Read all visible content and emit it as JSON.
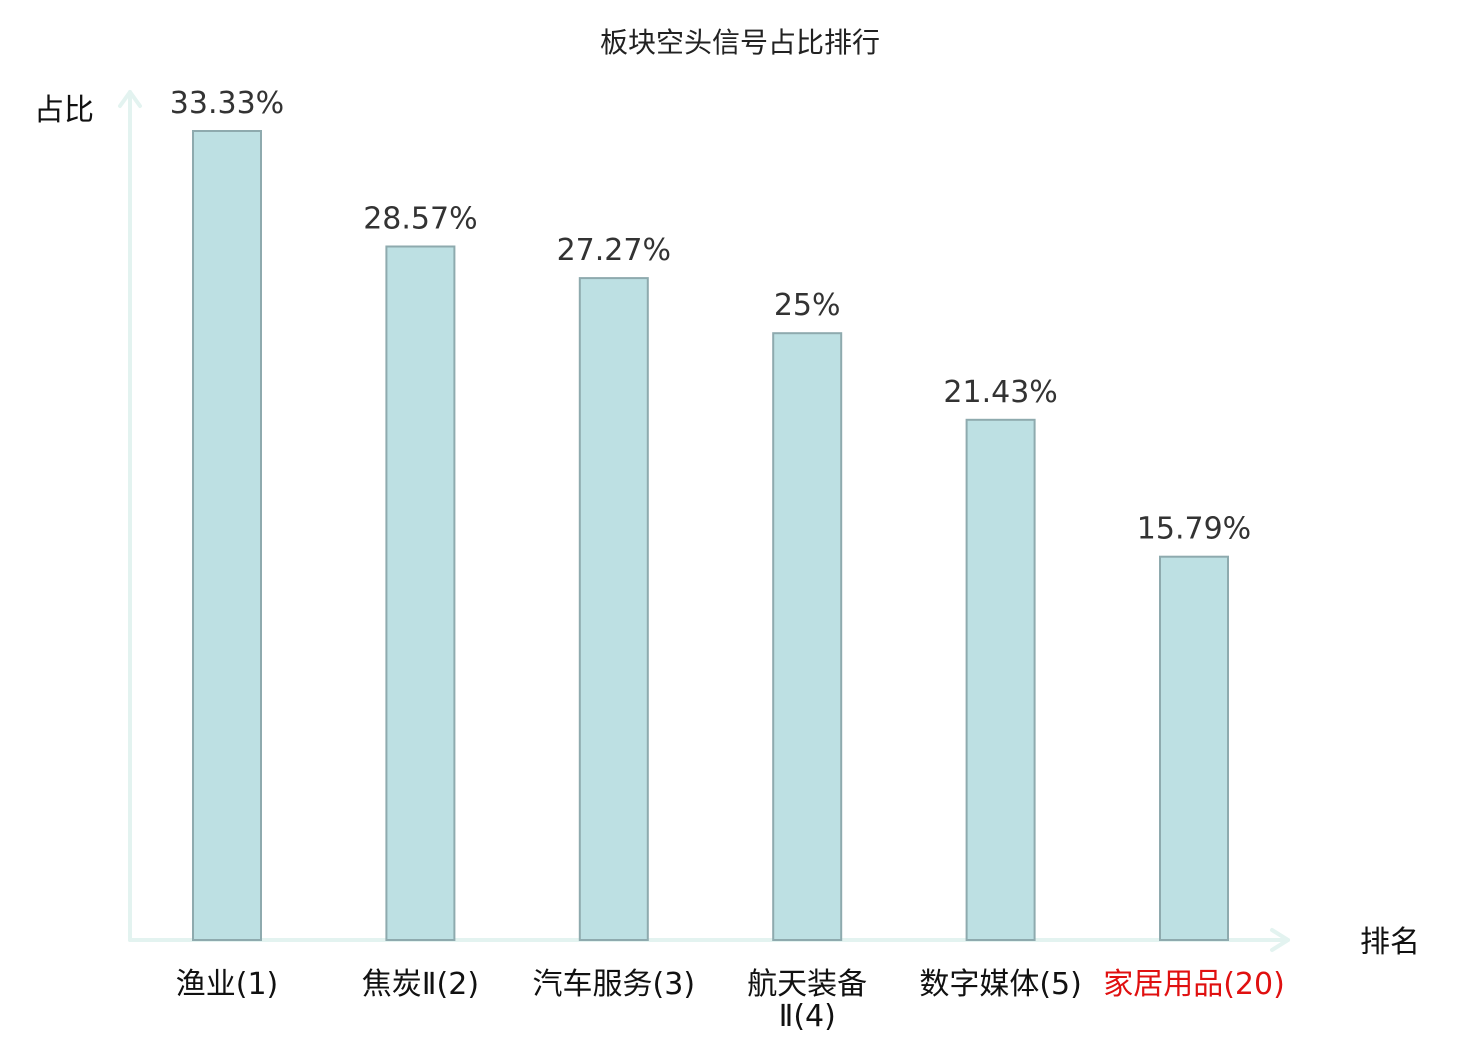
{
  "chart_data": {
    "type": "bar",
    "title": "板块空头信号占比排行",
    "ylabel": "占比",
    "xlabel": "排名",
    "categories": [
      {
        "label": "渔业(1)",
        "lines": [
          "渔业(1)"
        ],
        "highlight": false
      },
      {
        "label": "焦炭Ⅱ(2)",
        "lines": [
          "焦炭Ⅱ(2)"
        ],
        "highlight": false
      },
      {
        "label": "汽车服务(3)",
        "lines": [
          "汽车服务(3)"
        ],
        "highlight": false
      },
      {
        "label": "航天装备Ⅱ(4)",
        "lines": [
          "航天装备",
          "Ⅱ(4)"
        ],
        "highlight": false
      },
      {
        "label": "数字媒体(5)",
        "lines": [
          "数字媒体(5)"
        ],
        "highlight": false
      },
      {
        "label": "家居用品(20)",
        "lines": [
          "家居用品(20)"
        ],
        "highlight": true
      }
    ],
    "values": [
      33.33,
      28.57,
      27.27,
      25,
      21.43,
      15.79
    ],
    "value_labels": [
      "33.33%",
      "28.57%",
      "27.27%",
      "25%",
      "21.43%",
      "15.79%"
    ],
    "ylim": [
      0,
      33.33
    ],
    "grid": false,
    "colors": {
      "bar_fill": "#bde0e3",
      "bar_stroke": "#8eaaae",
      "axis": "#e3f3f0",
      "highlight_label": "#e01010"
    }
  }
}
